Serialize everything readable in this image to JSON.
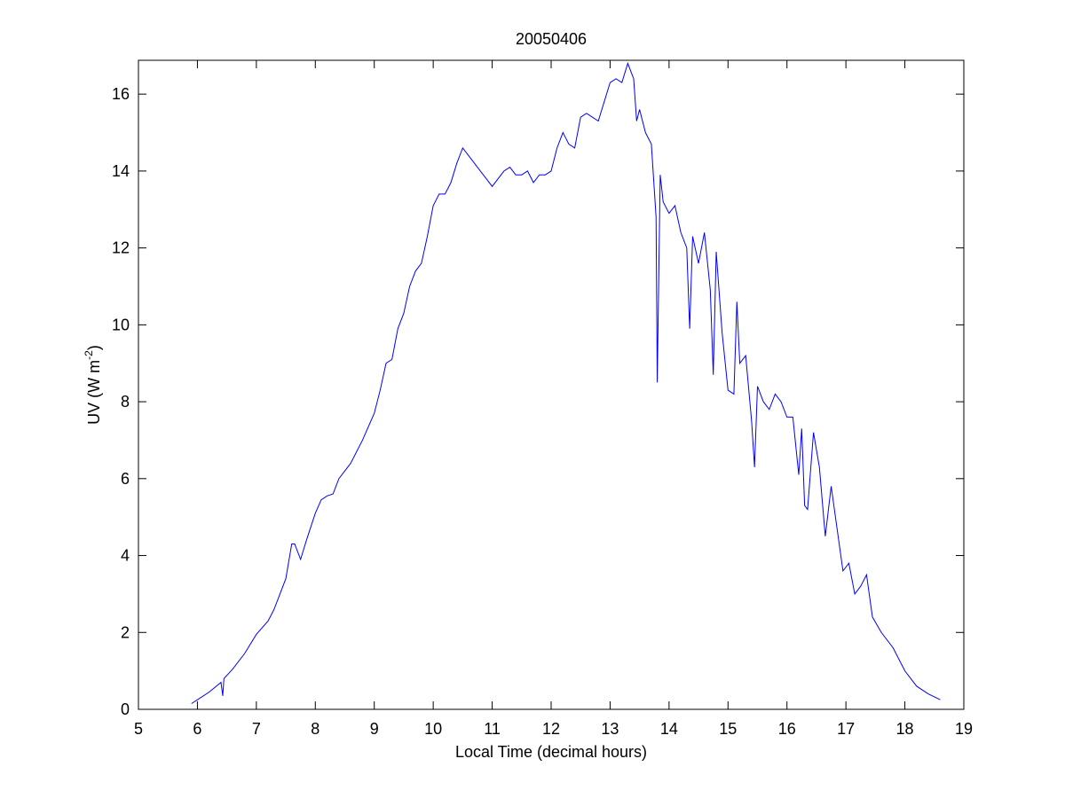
{
  "chart_data": {
    "type": "line",
    "title": "20050406",
    "xlabel": "Local Time (decimal hours)",
    "ylabel": [
      "UV (W m",
      "-2",
      ")"
    ],
    "xlim": [
      5,
      19
    ],
    "xticks": [
      5,
      6,
      7,
      8,
      9,
      10,
      11,
      12,
      13,
      14,
      15,
      16,
      17,
      18,
      19
    ],
    "ylim": [
      0,
      16.88
    ],
    "yticks": [
      0,
      2,
      4,
      6,
      8,
      10,
      12,
      14,
      16
    ],
    "series": [
      {
        "name": "UV",
        "color": "#0000ff",
        "x": [
          5.9,
          6.0,
          6.2,
          6.4,
          6.43,
          6.45,
          6.6,
          6.8,
          7.0,
          7.2,
          7.3,
          7.4,
          7.5,
          7.6,
          7.65,
          7.75,
          7.85,
          8.0,
          8.1,
          8.2,
          8.3,
          8.4,
          8.6,
          8.8,
          9.0,
          9.1,
          9.2,
          9.3,
          9.4,
          9.5,
          9.6,
          9.7,
          9.8,
          9.9,
          10.0,
          10.1,
          10.2,
          10.3,
          10.4,
          10.5,
          10.6,
          10.7,
          10.8,
          10.9,
          11.0,
          11.1,
          11.2,
          11.3,
          11.4,
          11.5,
          11.6,
          11.7,
          11.8,
          11.9,
          12.0,
          12.1,
          12.2,
          12.3,
          12.4,
          12.5,
          12.6,
          12.7,
          12.8,
          12.9,
          13.0,
          13.1,
          13.2,
          13.3,
          13.4,
          13.45,
          13.5,
          13.6,
          13.7,
          13.78,
          13.8,
          13.85,
          13.9,
          14.0,
          14.1,
          14.2,
          14.3,
          14.35,
          14.4,
          14.5,
          14.6,
          14.7,
          14.75,
          14.8,
          14.9,
          15.0,
          15.1,
          15.15,
          15.2,
          15.3,
          15.4,
          15.45,
          15.5,
          15.6,
          15.7,
          15.8,
          15.9,
          16.0,
          16.1,
          16.2,
          16.25,
          16.3,
          16.35,
          16.45,
          16.55,
          16.65,
          16.75,
          16.85,
          16.95,
          17.05,
          17.15,
          17.25,
          17.35,
          17.45,
          17.6,
          17.8,
          18.0,
          18.2,
          18.4,
          18.6
        ],
        "values": [
          0.15,
          0.25,
          0.45,
          0.7,
          0.35,
          0.8,
          1.05,
          1.45,
          1.95,
          2.3,
          2.6,
          3.0,
          3.4,
          4.3,
          4.3,
          3.9,
          4.4,
          5.1,
          5.45,
          5.55,
          5.6,
          6.0,
          6.4,
          7.0,
          7.7,
          8.3,
          9.0,
          9.1,
          9.9,
          10.3,
          11.0,
          11.4,
          11.6,
          12.3,
          13.1,
          13.4,
          13.4,
          13.7,
          14.2,
          14.6,
          14.4,
          14.2,
          14.0,
          13.8,
          13.6,
          13.8,
          14.0,
          14.1,
          13.9,
          13.9,
          14.0,
          13.7,
          13.9,
          13.9,
          14.0,
          14.6,
          15.0,
          14.7,
          14.6,
          15.4,
          15.5,
          15.4,
          15.3,
          15.8,
          16.3,
          16.4,
          16.3,
          16.8,
          16.4,
          15.3,
          15.6,
          15.0,
          14.7,
          12.8,
          8.5,
          13.9,
          13.2,
          12.9,
          13.1,
          12.4,
          12.0,
          9.9,
          12.3,
          11.6,
          12.4,
          10.9,
          8.7,
          11.9,
          9.8,
          8.3,
          8.2,
          10.6,
          9.0,
          9.2,
          7.5,
          6.3,
          8.4,
          8.0,
          7.8,
          8.2,
          8.0,
          7.6,
          7.6,
          6.1,
          7.3,
          5.3,
          5.2,
          7.2,
          6.3,
          4.5,
          5.8,
          4.7,
          3.6,
          3.8,
          3.0,
          3.2,
          3.5,
          2.4,
          2.0,
          1.6,
          1.0,
          0.6,
          0.4,
          0.25
        ]
      }
    ]
  }
}
